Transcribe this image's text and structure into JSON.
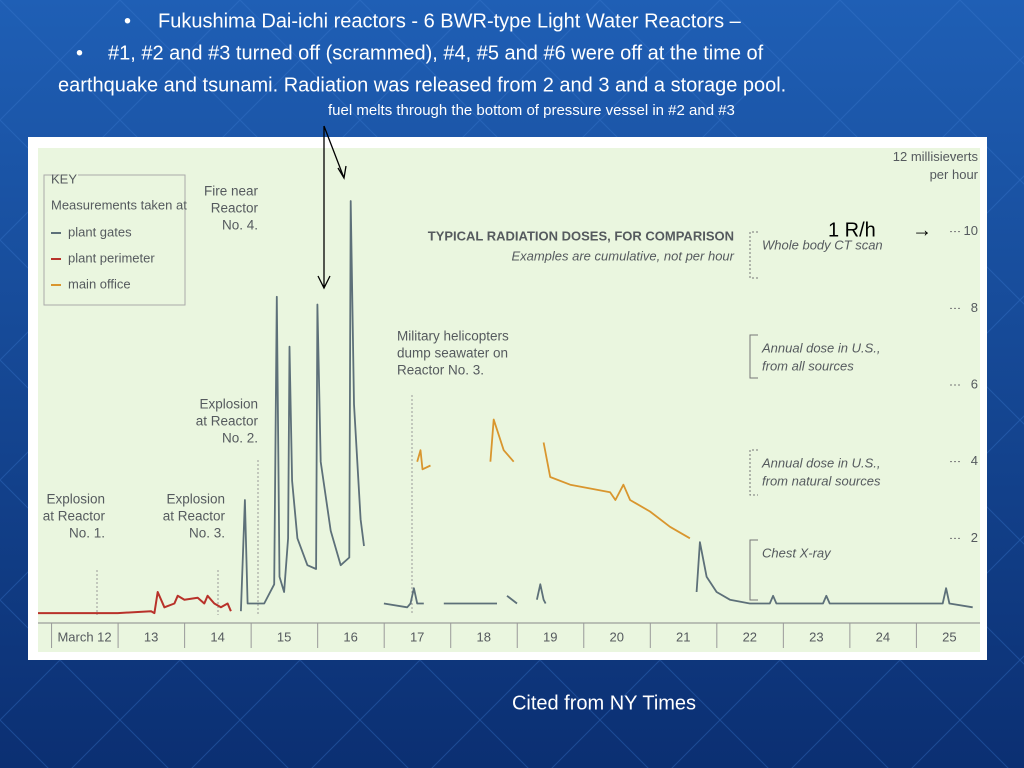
{
  "slide": {
    "bullets": [
      "Fukushima Dai-ichi reactors - 6 BWR-type Light Water Reactors –",
      "#1, #2 and #3 turned off (scrammed), #4, #5 and #6 were off at the time of",
      "earthquake and tsunami.  Radiation was released from 2 and 3 and a storage pool."
    ],
    "note": "fuel melts through the bottom of pressure vessel in #2 and #3",
    "marker": "1 R/h",
    "marker_arrow": "→",
    "credit": "Cited from NY Times"
  },
  "chart_data": {
    "type": "line",
    "legend_title": "KEY",
    "legend_subtitle": "Measurements taken at",
    "comparison_title": "TYPICAL RADIATION DOSES, FOR COMPARISON",
    "comparison_subtitle": "Examples are cumulative, not per hour",
    "comparison_items": [
      [
        "Whole body CT scan"
      ],
      [
        "Annual dose in U.S.,",
        "from all sources"
      ],
      [
        "Annual dose in U.S.,",
        "from natural sources"
      ],
      [
        "Chest X-ray"
      ]
    ],
    "annotations": [
      [
        "Fire near",
        "Reactor",
        "No. 4."
      ],
      [
        "Explosion",
        "at Reactor",
        "No. 2."
      ],
      [
        "Explosion",
        "at Reactor",
        "No. 1."
      ],
      [
        "Explosion",
        "at Reactor",
        "No. 3."
      ],
      [
        "Military helicopters",
        "dump seawater on",
        "Reactor No. 3."
      ]
    ],
    "xlim": [
      11.3,
      25.46
    ],
    "xticks": [
      {
        "value": 12,
        "label": "March 12"
      },
      13,
      14,
      15,
      16,
      17,
      18,
      19,
      20,
      21,
      22,
      23,
      24,
      25
    ],
    "ylim": [
      0,
      12
    ],
    "yticks": [
      2,
      4,
      6,
      8,
      10,
      {
        "value": 12,
        "label": "12 millisieverts per hour"
      }
    ],
    "series": [
      {
        "name": "plant gates",
        "color": "#5d7079",
        "x": [
          14.35,
          14.41,
          14.45,
          14.7,
          14.85,
          14.89,
          14.93,
          15.0,
          15.06,
          15.08,
          15.12,
          15.2,
          15.35,
          15.48,
          15.5,
          15.55,
          15.7,
          15.85,
          15.98,
          16.0,
          16.05,
          16.15,
          16.2,
          16.35,
          16.5,
          16.85,
          16.9,
          16.95,
          17.0,
          17.1,
          17.25,
          17.4,
          18.2,
          18.28,
          18.35,
          18.5,
          18.65,
          18.8,
          18.85,
          18.9,
          18.93,
          20.0,
          21.2,
          21.25,
          21.35,
          21.5,
          21.7,
          22.0,
          22.3,
          22.35,
          22.4,
          23.1,
          23.15,
          23.2,
          24.9,
          24.95,
          25.0,
          25.35
        ],
        "values": [
          0.1,
          3.0,
          0.3,
          0.3,
          0.8,
          8.3,
          1.0,
          0.6,
          2.0,
          7.0,
          3.5,
          2.0,
          1.3,
          1.2,
          8.1,
          4.0,
          2.2,
          1.3,
          1.5,
          10.8,
          5.5,
          2.5,
          1.8,
          null,
          0.3,
          0.2,
          0.3,
          0.7,
          0.3,
          0.3,
          null,
          0.3,
          0.3,
          null,
          0.5,
          0.3,
          null,
          0.4,
          0.8,
          0.4,
          0.3,
          null,
          0.6,
          1.9,
          1.0,
          0.6,
          0.4,
          0.3,
          0.3,
          0.5,
          0.3,
          0.3,
          0.5,
          0.3,
          0.3,
          0.7,
          0.3,
          0.2
        ]
      },
      {
        "name": "plant perimeter",
        "color": "#b8322a",
        "x": [
          11.3,
          12.5,
          13.0,
          13.05,
          13.1,
          13.2,
          13.35,
          13.4,
          13.5,
          13.7,
          13.8,
          13.85,
          13.95,
          14.05,
          14.15,
          14.2
        ],
        "values": [
          0.05,
          0.05,
          0.1,
          0.05,
          0.6,
          0.2,
          0.3,
          0.5,
          0.4,
          0.45,
          0.3,
          0.5,
          0.3,
          0.2,
          0.3,
          0.1
        ]
      },
      {
        "name": "main office",
        "color": "#d9962e",
        "x": [
          17.0,
          17.05,
          17.08,
          17.2,
          17.5,
          18.1,
          18.15,
          18.3,
          18.45,
          18.55,
          18.6,
          18.65,
          18.9,
          19.0,
          19.3,
          19.6,
          19.9,
          19.98,
          20.1,
          20.2,
          20.5,
          20.8,
          21.1
        ],
        "values": [
          4.0,
          4.3,
          3.8,
          3.9,
          null,
          4.0,
          5.1,
          4.3,
          4.0,
          null,
          4.1,
          null,
          4.5,
          3.6,
          3.4,
          3.3,
          3.2,
          3.0,
          3.4,
          3.0,
          2.7,
          2.3,
          2.0
        ]
      }
    ]
  }
}
